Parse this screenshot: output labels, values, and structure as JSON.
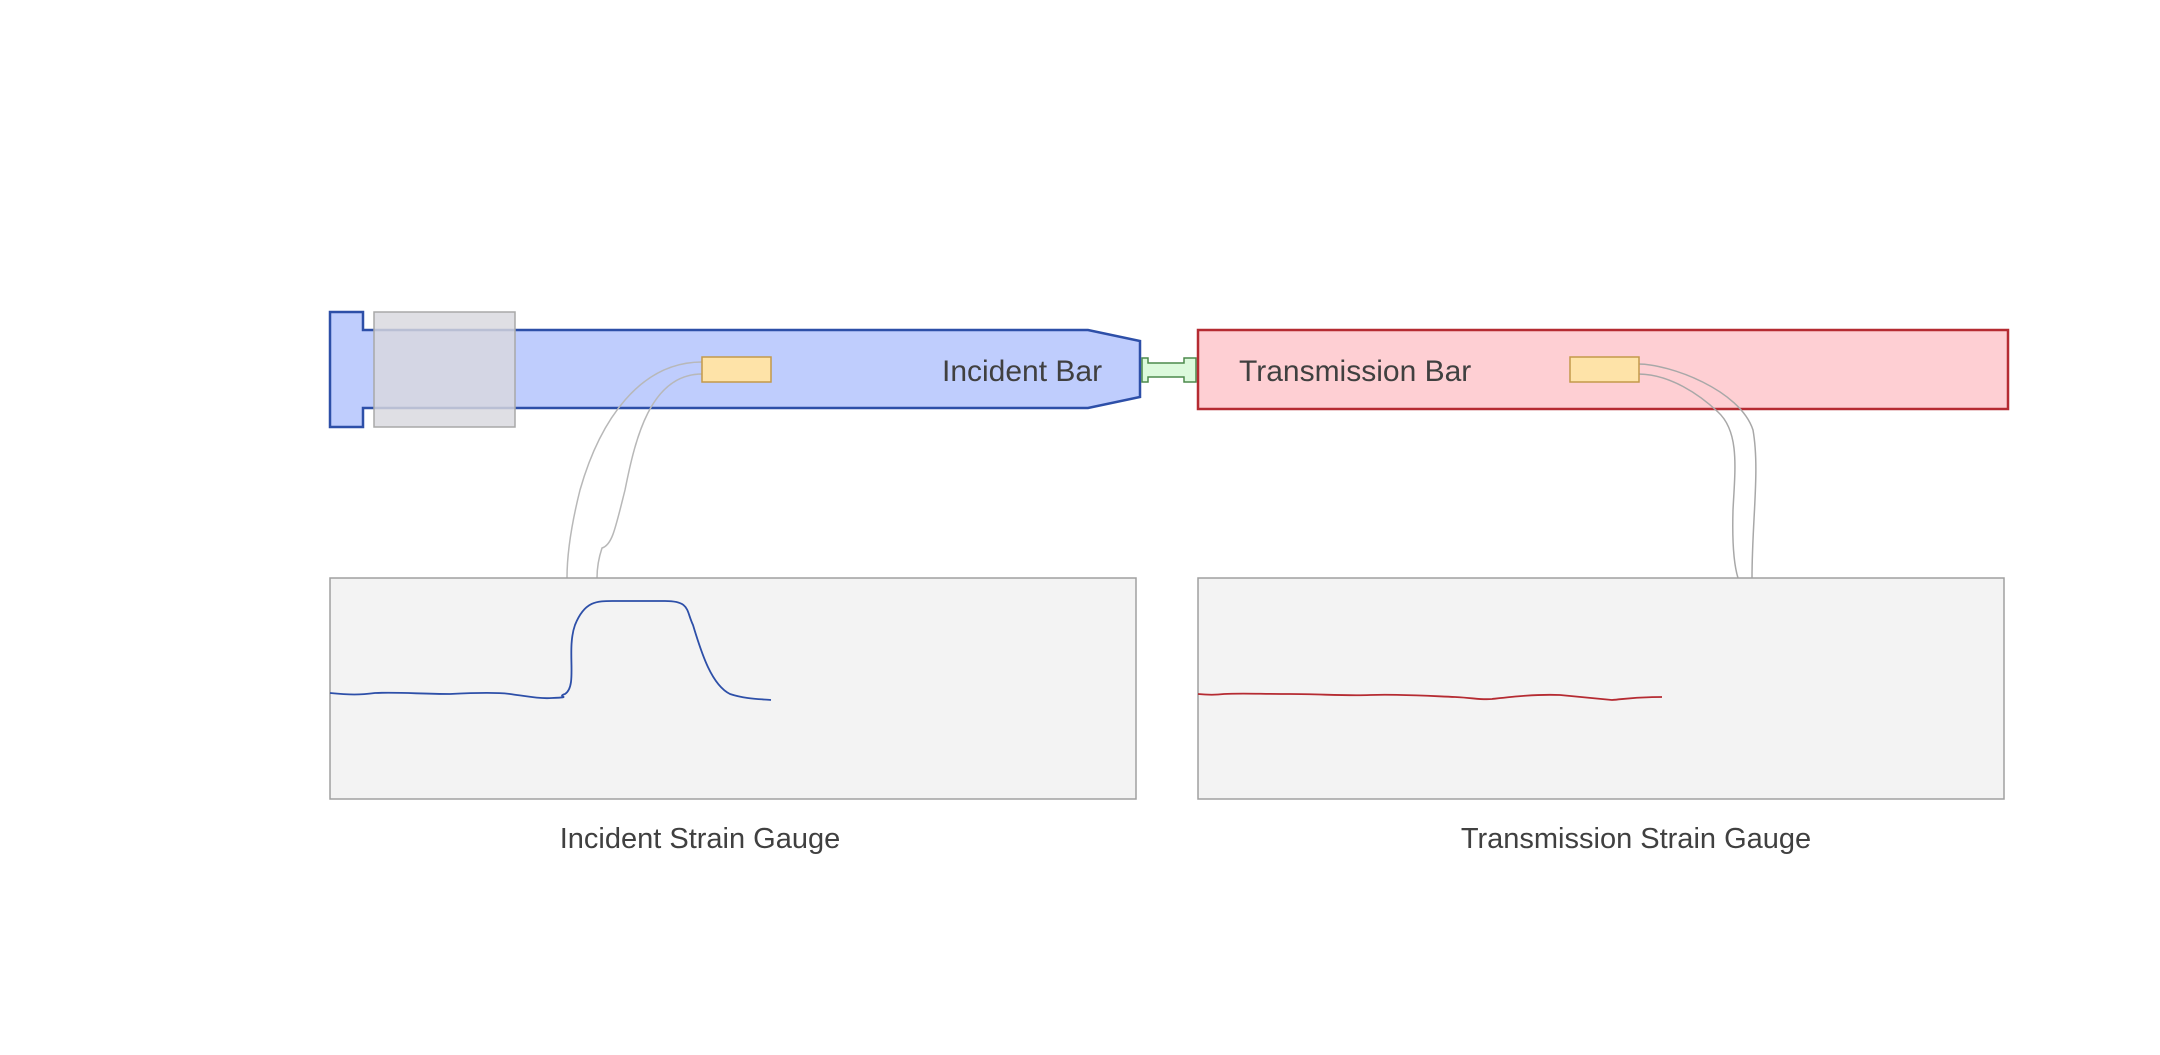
{
  "labels": {
    "incident_bar": "Incident Bar",
    "transmission_bar": "Transmission Bar",
    "incident_gauge": "Incident Strain Gauge",
    "transmission_gauge": "Transmission Strain Gauge"
  },
  "colors": {
    "incident_fill": "#bfcdfd",
    "incident_stroke": "#2d4fa8",
    "transmission_fill": "#fecfd3",
    "transmission_stroke": "#b52b32",
    "specimen_fill": "#dcfadc",
    "specimen_stroke": "#4c8a4c",
    "gauge_fill": "#fee3a8",
    "gauge_stroke": "#c49a4a",
    "striker_fill": "#d4d4dc",
    "panel_fill": "#f3f3f3",
    "panel_stroke": "#a0a0a0",
    "wire": "#b8b8b8",
    "incident_signal": "#2d4fa8",
    "transmission_signal": "#b52b32"
  }
}
